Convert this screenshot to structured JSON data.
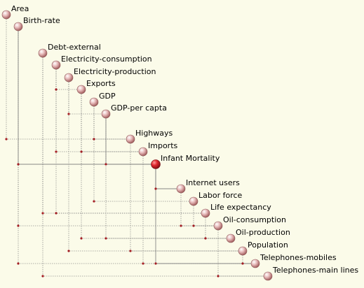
{
  "diagram": {
    "variables": [
      {
        "id": "area",
        "label": "Area"
      },
      {
        "id": "birth-rate",
        "label": "Birth-rate"
      },
      {
        "id": "debt-external",
        "label": "Debt-external"
      },
      {
        "id": "electricity-consumption",
        "label": "Electricity-consumption"
      },
      {
        "id": "electricity-production",
        "label": "Electricity-production"
      },
      {
        "id": "exports",
        "label": "Exports"
      },
      {
        "id": "gdp",
        "label": "GDP"
      },
      {
        "id": "gdp-per-capta",
        "label": "GDP-per capta"
      },
      {
        "id": "highways",
        "label": "Highways"
      },
      {
        "id": "imports",
        "label": "Imports"
      },
      {
        "id": "infant-mortality",
        "label": "Infant Mortality",
        "selected": true
      },
      {
        "id": "internet-users",
        "label": "Internet users"
      },
      {
        "id": "labor-force",
        "label": "Labor force"
      },
      {
        "id": "life-expectancy",
        "label": "Life expectancy"
      },
      {
        "id": "oil-consumption",
        "label": "Oil-consumption"
      },
      {
        "id": "oil-production",
        "label": "Oil-production"
      },
      {
        "id": "population",
        "label": "Population"
      },
      {
        "id": "telephones-mobiles",
        "label": "Telephones-mobiles"
      },
      {
        "id": "telephones-main-lines",
        "label": "Telephones-main lines"
      }
    ],
    "connections": [
      [
        "area",
        "highways"
      ],
      [
        "birth-rate",
        "infant-mortality"
      ],
      [
        "birth-rate",
        "oil-consumption"
      ],
      [
        "birth-rate",
        "telephones-mobiles"
      ],
      [
        "debt-external",
        "life-expectancy"
      ],
      [
        "debt-external",
        "telephones-main-lines"
      ],
      [
        "electricity-consumption",
        "exports"
      ],
      [
        "electricity-consumption",
        "imports"
      ],
      [
        "electricity-consumption",
        "life-expectancy"
      ],
      [
        "electricity-production",
        "gdp-per-capta"
      ],
      [
        "electricity-production",
        "population"
      ],
      [
        "exports",
        "imports"
      ],
      [
        "exports",
        "oil-production"
      ],
      [
        "gdp",
        "highways"
      ],
      [
        "gdp",
        "labor-force"
      ],
      [
        "gdp-per-capta",
        "infant-mortality"
      ],
      [
        "gdp-per-capta",
        "oil-production"
      ],
      [
        "highways",
        "population"
      ],
      [
        "imports",
        "telephones-mobiles"
      ],
      [
        "infant-mortality",
        "internet-users"
      ],
      [
        "infant-mortality",
        "telephones-mobiles"
      ],
      [
        "internet-users",
        "oil-consumption"
      ],
      [
        "labor-force",
        "oil-consumption"
      ],
      [
        "life-expectancy",
        "oil-production"
      ],
      [
        "oil-consumption",
        "telephones-main-lines"
      ],
      [
        "population",
        "telephones-mobiles"
      ]
    ],
    "colors": {
      "background": "#fbfbe9",
      "node": "#d9a2a2",
      "node_selected": "#d3262c",
      "line": "#7a7a7a",
      "dot": "#a41e24"
    }
  }
}
